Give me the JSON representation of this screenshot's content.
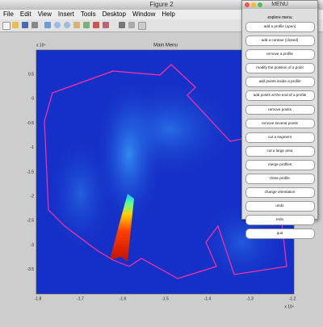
{
  "window": {
    "title": "Figure 2",
    "menus": [
      "File",
      "Edit",
      "View",
      "Insert",
      "Tools",
      "Desktop",
      "Window",
      "Help"
    ]
  },
  "axes": {
    "title": "Main Menu",
    "xlim": [
      -1.8,
      -1.2
    ],
    "xticks": [
      -1.8,
      -1.7,
      -1.6,
      -1.5,
      -1.4,
      -1.3,
      -1.2
    ],
    "ylim": [
      -4,
      1
    ],
    "yticks": [
      0.5,
      0,
      -0.5,
      -1,
      -1.5,
      -2,
      -2.5,
      -3,
      -3.5
    ],
    "x_exponent": "x 10⁴",
    "y_exponent": "x 10⁴"
  },
  "menu_window": {
    "title": "MENU",
    "label": "explore menu",
    "buttons": [
      "add a profile (open)",
      "add a contour (closed)",
      "remove a profile",
      "modify the position of a point",
      "add points inside a profile",
      "add points at the end of a profile",
      "remove points",
      "remove several points",
      "cut a segment",
      "cut a large area",
      "merge profiles",
      "close profile",
      "change orientation",
      "undo",
      "redo",
      "quit"
    ]
  }
}
